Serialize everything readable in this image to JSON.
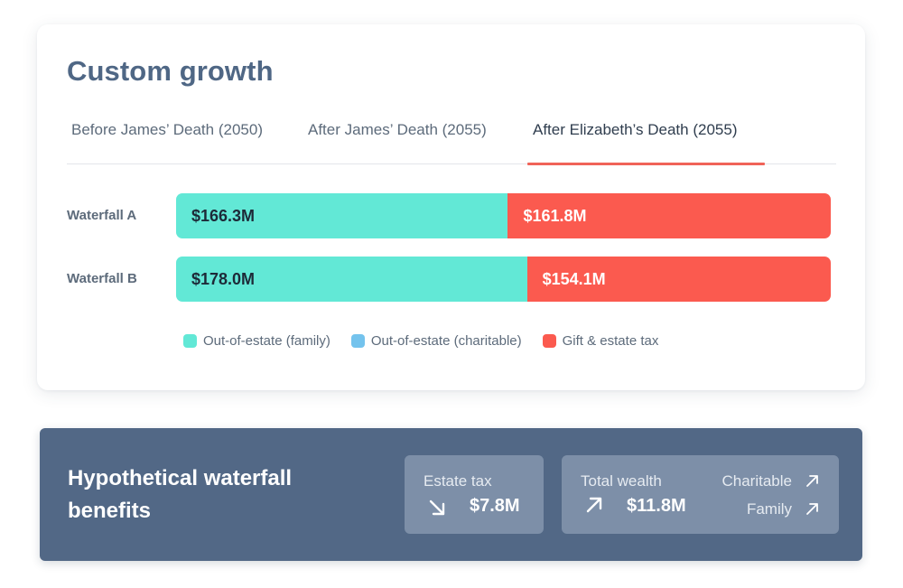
{
  "card": {
    "title": "Custom growth",
    "tabs": [
      {
        "label": "Before James’ Death (2050)",
        "active": false
      },
      {
        "label": "After James’ Death (2055)",
        "active": false
      },
      {
        "label": "After Elizabeth’s Death (2055)",
        "active": true
      }
    ]
  },
  "chart_data": {
    "type": "bar",
    "orientation": "horizontal",
    "stacked": true,
    "categories": [
      "Waterfall A",
      "Waterfall B"
    ],
    "series": [
      {
        "name": "Out-of-estate (family)",
        "color": "#62e8d6",
        "values": [
          166.3,
          178.0
        ],
        "labels": [
          "$166.3M",
          "$178.0M"
        ]
      },
      {
        "name": "Out-of-estate (charitable)",
        "color": "#74c3ed",
        "values": [
          0,
          0
        ],
        "labels": [
          "",
          ""
        ]
      },
      {
        "name": "Gift & estate tax",
        "color": "#fb5a4f",
        "values": [
          161.8,
          154.1
        ],
        "labels": [
          "$161.8M",
          "$154.1M"
        ]
      }
    ],
    "legend_position": "bottom",
    "grid": false
  },
  "benefits": {
    "title": "Hypothetical waterfall benefits",
    "estate_tax": {
      "label": "Estate tax",
      "value": "$7.8M",
      "direction_icon": "arrow-down-right-icon"
    },
    "total_wealth": {
      "label": "Total wealth",
      "value": "$11.8M",
      "direction_icon": "arrow-up-right-icon"
    },
    "charitable": {
      "label": "Charitable",
      "direction_icon": "arrow-up-right-icon"
    },
    "family": {
      "label": "Family",
      "direction_icon": "arrow-up-right-icon"
    }
  }
}
